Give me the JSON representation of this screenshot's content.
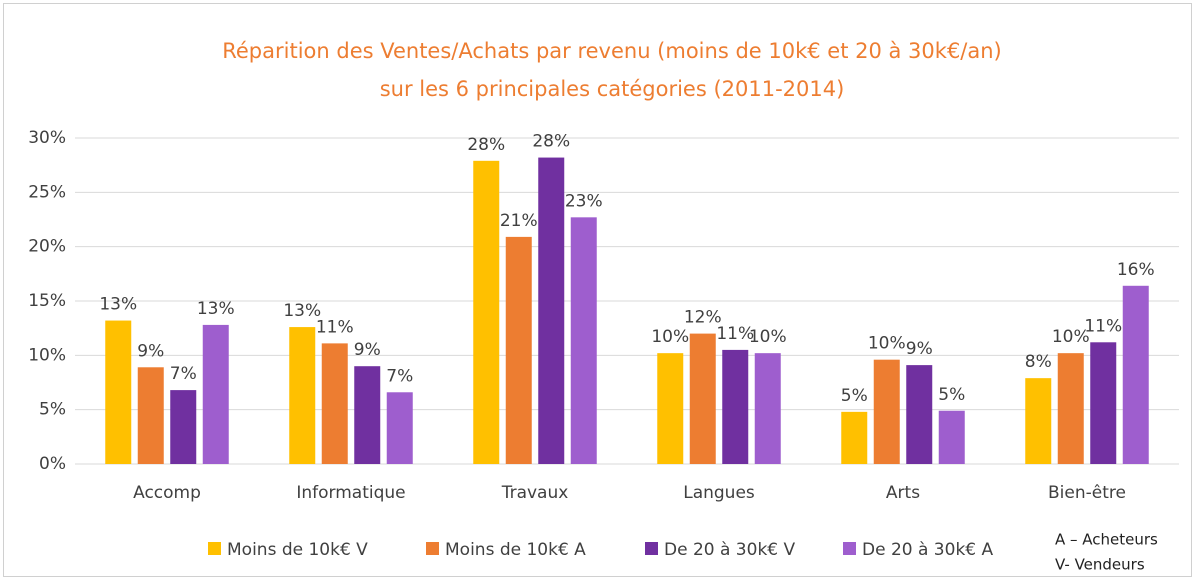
{
  "chart_data": {
    "type": "bar",
    "title_lines": [
      "Réparition des Ventes/Achats par revenu (moins de 10k€  et 20 à 30k€/an)",
      "sur les 6 principales catégories (2011-2014)"
    ],
    "categories": [
      "Accomp",
      "Informatique",
      "Travaux",
      "Langues",
      "Arts",
      "Bien-être"
    ],
    "series": [
      {
        "name": "Moins de 10k€ V",
        "color": "#FFC000",
        "values": [
          13.2,
          12.6,
          27.9,
          10.2,
          4.8,
          7.9
        ],
        "value_labels": [
          "13%",
          "13%",
          "28%",
          "10%",
          "5%",
          "8%"
        ]
      },
      {
        "name": "Moins de 10k€ A",
        "color": "#ED7D31",
        "values": [
          8.9,
          11.1,
          20.9,
          12.0,
          9.6,
          10.2
        ],
        "value_labels": [
          "9%",
          "11%",
          "21%",
          "12%",
          "10%",
          "10%"
        ]
      },
      {
        "name": "De 20 à 30k€ V",
        "color": "#7030A0",
        "values": [
          6.8,
          9.0,
          28.2,
          10.5,
          9.1,
          11.2
        ],
        "value_labels": [
          "7%",
          "9%",
          "28%",
          "11%",
          "9%",
          "11%"
        ]
      },
      {
        "name": "De 20 à 30k€ A",
        "color": "#9E5ECE",
        "values": [
          12.8,
          6.6,
          22.7,
          10.2,
          4.9,
          16.4
        ],
        "value_labels": [
          "13%",
          "7%",
          "23%",
          "10%",
          "5%",
          "16%"
        ]
      }
    ],
    "ylim": [
      0,
      30
    ],
    "yticks": [
      {
        "value": 0,
        "label": "0%"
      },
      {
        "value": 5,
        "label": "5%"
      },
      {
        "value": 10,
        "label": "10%"
      },
      {
        "value": 15,
        "label": "15%"
      },
      {
        "value": 20,
        "label": "20%"
      },
      {
        "value": 25,
        "label": "25%"
      },
      {
        "value": 30,
        "label": "30%"
      }
    ],
    "grid": true,
    "legend": "bottom",
    "annotations": [
      "A – Acheteurs",
      "V- Vendeurs"
    ]
  }
}
